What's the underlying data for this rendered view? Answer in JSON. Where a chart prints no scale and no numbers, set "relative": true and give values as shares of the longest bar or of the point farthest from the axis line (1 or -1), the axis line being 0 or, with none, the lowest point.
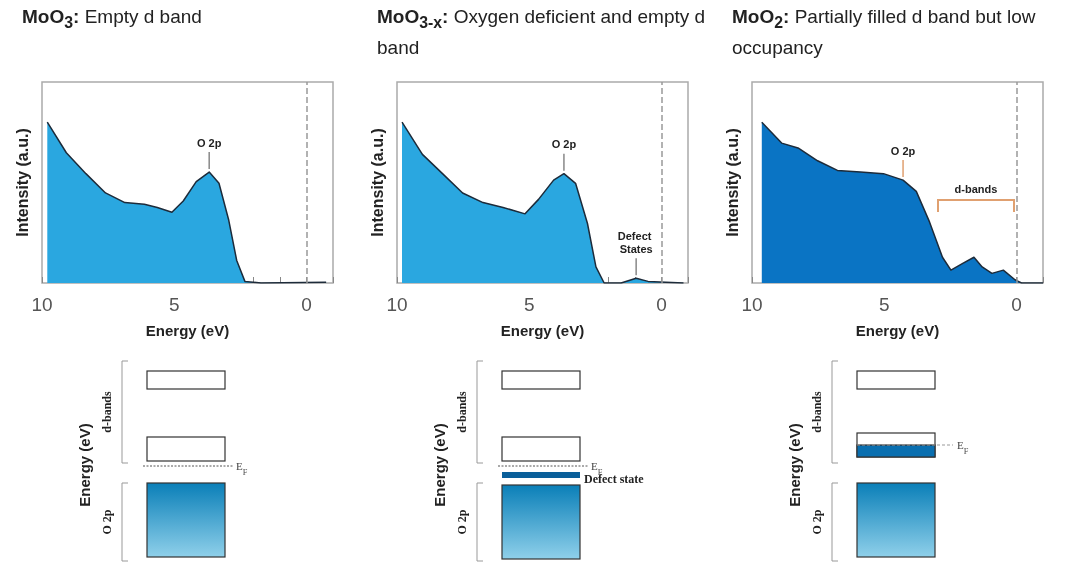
{
  "chart_data": [
    {
      "type": "area",
      "title": "MoO$_{3}$: Empty d band",
      "xlabel": "Energy (eV)",
      "ylabel": "Intensity (a.u.)",
      "relative": true,
      "grid": false,
      "xlim": [
        10,
        -1
      ],
      "xticks": [
        10,
        {
          "value": 9,
          "label": null
        },
        {
          "value": 8,
          "label": null
        },
        {
          "value": 7,
          "label": null
        },
        {
          "value": 6,
          "label": null
        },
        5,
        {
          "value": 4,
          "label": null
        },
        {
          "value": 3,
          "label": null
        },
        {
          "value": 2,
          "label": null
        },
        {
          "value": 1,
          "label": null
        },
        0,
        {
          "value": -1,
          "label": null
        }
      ],
      "ref_lines": [
        {
          "axis": "x",
          "value": 0,
          "color": "#999999",
          "line_style": "dashed"
        }
      ],
      "series": [
        {
          "color": "#2aa7e0",
          "x": [
            9.8,
            9.08,
            8.34,
            7.6,
            6.87,
            6.13,
            5.64,
            5.09,
            4.66,
            4.17,
            3.68,
            3.31,
            2.94,
            2.64,
            2.33,
            1.72,
            -0.74
          ],
          "values": [
            1.0,
            0.81,
            0.68,
            0.56,
            0.5,
            0.49,
            0.47,
            0.44,
            0.51,
            0.63,
            0.69,
            0.62,
            0.39,
            0.14,
            0.01,
            0,
            0.005
          ]
        }
      ],
      "annotations": [
        {
          "text": "O 2p",
          "x": 3.68,
          "y": 0.69
        },
        "Energy (eV)",
        "d-bands",
        "O 2p",
        "E$_{F}$"
      ]
    },
    {
      "type": "area",
      "title": "MoO$_{3-x}$: Oxygen deficient and empty d band",
      "xlabel": "Energy (eV)",
      "ylabel": "Intensity (a.u.)",
      "relative": true,
      "grid": false,
      "xlim": [
        10,
        -1
      ],
      "xticks": [
        10,
        {
          "value": 9,
          "label": null
        },
        {
          "value": 8,
          "label": null
        },
        {
          "value": 7,
          "label": null
        },
        {
          "value": 6,
          "label": null
        },
        5,
        {
          "value": 4,
          "label": null
        },
        {
          "value": 3,
          "label": null
        },
        {
          "value": 2,
          "label": null
        },
        {
          "value": 1,
          "label": null
        },
        0,
        {
          "value": -1,
          "label": null
        }
      ],
      "ref_lines": [
        {
          "axis": "x",
          "value": 0,
          "color": "#999999",
          "line_style": "dashed"
        }
      ],
      "series": [
        {
          "color": "#2aa7e0",
          "x": [
            9.81,
            9.04,
            8.28,
            7.52,
            6.75,
            5.99,
            5.16,
            4.65,
            4.08,
            3.69,
            3.25,
            2.8,
            2.48,
            2.17,
            1.53,
            0.96,
            0.51,
            -0.83
          ],
          "values": [
            1.0,
            0.8,
            0.68,
            0.56,
            0.5,
            0.47,
            0.43,
            0.52,
            0.64,
            0.68,
            0.62,
            0.37,
            0.1,
            0,
            0,
            0.03,
            0.01,
            0
          ]
        }
      ],
      "annotations": [
        {
          "text": "O 2p",
          "x": 3.69,
          "y": 0.68
        },
        {
          "text": "Defect States",
          "x": 0.96,
          "y": 0.03
        },
        "Energy (eV)",
        "d-bands",
        "O 2p",
        "E$_{F}$",
        "Defect state"
      ]
    },
    {
      "type": "area",
      "title": "MoO$_{2}$: Partially filled d band but low occupancy",
      "xlabel": "Energy (eV)",
      "ylabel": "Intensity (a.u.)",
      "relative": true,
      "grid": false,
      "xlim": [
        10,
        -1
      ],
      "xticks": [
        10,
        {
          "value": 9,
          "label": null
        },
        {
          "value": 8,
          "label": null
        },
        {
          "value": 7,
          "label": null
        },
        {
          "value": 6,
          "label": null
        },
        5,
        {
          "value": 4,
          "label": null
        },
        {
          "value": 3,
          "label": null
        },
        {
          "value": 2,
          "label": null
        },
        {
          "value": 1,
          "label": null
        },
        0,
        {
          "value": -1,
          "label": null
        }
      ],
      "ref_lines": [
        {
          "axis": "x",
          "value": 0,
          "color": "#999999",
          "line_style": "dashed"
        }
      ],
      "series": [
        {
          "color": "#0a74c4",
          "x": [
            9.63,
            8.88,
            8.26,
            7.52,
            6.77,
            5.9,
            5.03,
            4.29,
            3.79,
            3.29,
            2.8,
            2.48,
            2.05,
            1.61,
            1.3,
            0.93,
            0.5,
            0.06,
            -0.19,
            -1.0
          ],
          "values": [
            1.0,
            0.87,
            0.84,
            0.76,
            0.7,
            0.69,
            0.68,
            0.64,
            0.57,
            0.38,
            0.16,
            0.08,
            0.12,
            0.16,
            0.1,
            0.06,
            0.08,
            0.02,
            0,
            0
          ]
        }
      ],
      "annotations": [
        {
          "text": "O 2p",
          "x": 4.29,
          "y": 0.64
        },
        "d-bands",
        "Energy (eV)",
        "d-bands",
        "O 2p",
        "E$_{F}$"
      ]
    }
  ]
}
